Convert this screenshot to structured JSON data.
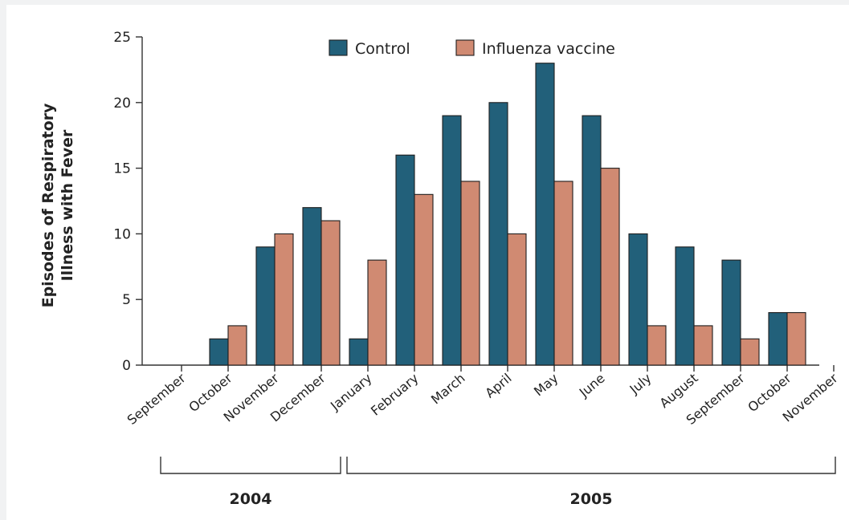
{
  "chart_data": {
    "type": "bar",
    "ylabel": [
      "Episodes of Respiratory",
      "Illness with Fever"
    ],
    "ylim": [
      0,
      25
    ],
    "yticks": [
      0,
      5,
      10,
      15,
      20,
      25
    ],
    "categories": [
      "September",
      "October",
      "November",
      "December",
      "January",
      "February",
      "March",
      "April",
      "May",
      "June",
      "July",
      "August",
      "September",
      "October",
      "November"
    ],
    "series": [
      {
        "name": "Control",
        "color": "#22607a",
        "values": [
          0,
          2,
          9,
          12,
          2,
          16,
          19,
          20,
          23,
          19,
          10,
          9,
          8,
          4,
          0
        ]
      },
      {
        "name": "Influenza vaccine",
        "color": "#d08a72",
        "values": [
          0,
          3,
          10,
          11,
          8,
          13,
          14,
          10,
          14,
          15,
          3,
          3,
          2,
          4,
          0
        ]
      }
    ],
    "years": [
      {
        "label": "2004",
        "from_index": 0,
        "to_index": 3
      },
      {
        "label": "2005",
        "from_index": 4,
        "to_index": 14
      }
    ],
    "legend": "top-center",
    "grid": false
  }
}
